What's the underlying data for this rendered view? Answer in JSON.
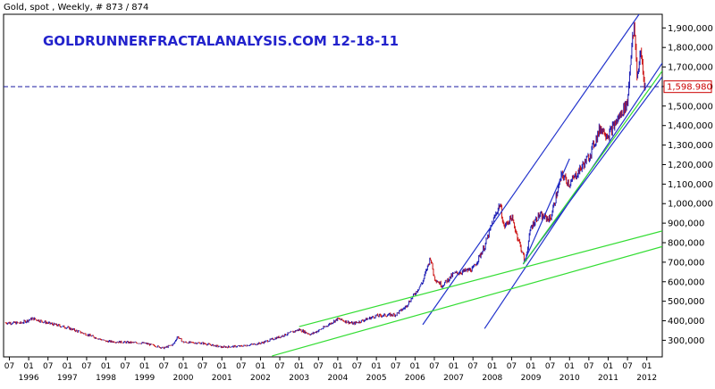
{
  "header": "Gold, spot , Weekly, # 873 / 874",
  "watermark": "GOLDRUNNERFRACTALANALYSIS.COM  12-18-11",
  "colors": {
    "background": "#ffffff",
    "frame": "#000000",
    "price_up": "#1a1ab3",
    "price_down": "#cc1111",
    "blue_channel": "#2233cc",
    "green_channel": "#33dd33",
    "dashed_line": "#1a1aa0",
    "watermark": "#2222cc",
    "last_price_box": "#cc0000"
  },
  "chart_data": {
    "type": "line",
    "title": "",
    "xlabel": "",
    "ylabel": "",
    "y_ticks": [
      "300,000",
      "400,000",
      "500,000",
      "600,000",
      "700,000",
      "800,000",
      "900,000",
      "1,000,000",
      "1,100,000",
      "1,200,000",
      "1,300,000",
      "1,400,000",
      "1,500,000",
      "1,600,000",
      "1,700,000",
      "1,800,000",
      "1,900,000"
    ],
    "y_tick_values": [
      300,
      400,
      500,
      600,
      700,
      800,
      900,
      1000,
      1100,
      1200,
      1300,
      1400,
      1500,
      1600,
      1700,
      1800,
      1900
    ],
    "ylim": [
      215,
      1970
    ],
    "xlim": [
      1995.35,
      2012.4
    ],
    "x_ticks_minor": [
      {
        "x": 1995.5,
        "label": "07"
      },
      {
        "x": 1996.0,
        "label": "01"
      },
      {
        "x": 1996.5,
        "label": "07"
      },
      {
        "x": 1997.0,
        "label": "01"
      },
      {
        "x": 1997.5,
        "label": "07"
      },
      {
        "x": 1998.0,
        "label": "01"
      },
      {
        "x": 1998.5,
        "label": "07"
      },
      {
        "x": 1999.0,
        "label": "01"
      },
      {
        "x": 1999.5,
        "label": "07"
      },
      {
        "x": 2000.0,
        "label": "01"
      },
      {
        "x": 2000.5,
        "label": "07"
      },
      {
        "x": 2001.0,
        "label": "01"
      },
      {
        "x": 2001.5,
        "label": "07"
      },
      {
        "x": 2002.0,
        "label": "01"
      },
      {
        "x": 2002.5,
        "label": "07"
      },
      {
        "x": 2003.0,
        "label": "01"
      },
      {
        "x": 2003.5,
        "label": "07"
      },
      {
        "x": 2004.0,
        "label": "01"
      },
      {
        "x": 2004.5,
        "label": "07"
      },
      {
        "x": 2005.0,
        "label": "01"
      },
      {
        "x": 2005.5,
        "label": "07"
      },
      {
        "x": 2006.0,
        "label": "01"
      },
      {
        "x": 2006.5,
        "label": "07"
      },
      {
        "x": 2007.0,
        "label": "01"
      },
      {
        "x": 2007.5,
        "label": "07"
      },
      {
        "x": 2008.0,
        "label": "01"
      },
      {
        "x": 2008.5,
        "label": "07"
      },
      {
        "x": 2009.0,
        "label": "01"
      },
      {
        "x": 2009.5,
        "label": "07"
      },
      {
        "x": 2010.0,
        "label": "01"
      },
      {
        "x": 2010.5,
        "label": "07"
      },
      {
        "x": 2011.0,
        "label": "01"
      },
      {
        "x": 2011.5,
        "label": "07"
      },
      {
        "x": 2012.0,
        "label": "01"
      }
    ],
    "x_ticks_major": [
      {
        "x": 1996.0,
        "label": "1996"
      },
      {
        "x": 1997.0,
        "label": "1997"
      },
      {
        "x": 1998.0,
        "label": "1998"
      },
      {
        "x": 1999.0,
        "label": "1999"
      },
      {
        "x": 2000.0,
        "label": "2000"
      },
      {
        "x": 2001.0,
        "label": "2001"
      },
      {
        "x": 2002.0,
        "label": "2002"
      },
      {
        "x": 2003.0,
        "label": "2003"
      },
      {
        "x": 2004.0,
        "label": "2004"
      },
      {
        "x": 2005.0,
        "label": "2005"
      },
      {
        "x": 2006.0,
        "label": "2006"
      },
      {
        "x": 2007.0,
        "label": "2007"
      },
      {
        "x": 2008.0,
        "label": "2008"
      },
      {
        "x": 2009.0,
        "label": "2009"
      },
      {
        "x": 2010.0,
        "label": "2010"
      },
      {
        "x": 2011.0,
        "label": "2011"
      },
      {
        "x": 2012.0,
        "label": "2012"
      }
    ],
    "price_series": {
      "name": "",
      "points": [
        [
          1995.4,
          390
        ],
        [
          1995.8,
          388
        ],
        [
          1996.1,
          412
        ],
        [
          1996.5,
          388
        ],
        [
          1997.0,
          365
        ],
        [
          1997.5,
          330
        ],
        [
          1998.0,
          295
        ],
        [
          1998.5,
          290
        ],
        [
          1999.0,
          285
        ],
        [
          1999.5,
          260
        ],
        [
          1999.75,
          280
        ],
        [
          1999.85,
          320
        ],
        [
          2000.0,
          290
        ],
        [
          2000.5,
          285
        ],
        [
          2001.0,
          265
        ],
        [
          2001.5,
          270
        ],
        [
          2002.0,
          285
        ],
        [
          2002.5,
          318
        ],
        [
          2003.0,
          355
        ],
        [
          2003.3,
          330
        ],
        [
          2003.6,
          360
        ],
        [
          2004.0,
          410
        ],
        [
          2004.4,
          385
        ],
        [
          2004.7,
          405
        ],
        [
          2005.0,
          425
        ],
        [
          2005.5,
          432
        ],
        [
          2005.75,
          470
        ],
        [
          2006.0,
          540
        ],
        [
          2006.2,
          600
        ],
        [
          2006.4,
          725
        ],
        [
          2006.5,
          620
        ],
        [
          2006.7,
          580
        ],
        [
          2007.0,
          640
        ],
        [
          2007.5,
          665
        ],
        [
          2007.8,
          780
        ],
        [
          2008.0,
          900
        ],
        [
          2008.2,
          1000
        ],
        [
          2008.3,
          880
        ],
        [
          2008.5,
          930
        ],
        [
          2008.7,
          800
        ],
        [
          2008.85,
          700
        ],
        [
          2009.0,
          880
        ],
        [
          2009.2,
          940
        ],
        [
          2009.5,
          920
        ],
        [
          2009.8,
          1150
        ],
        [
          2010.0,
          1100
        ],
        [
          2010.5,
          1240
        ],
        [
          2010.8,
          1390
        ],
        [
          2011.0,
          1350
        ],
        [
          2011.3,
          1450
        ],
        [
          2011.5,
          1520
        ],
        [
          2011.6,
          1800
        ],
        [
          2011.68,
          1900
        ],
        [
          2011.75,
          1650
        ],
        [
          2011.85,
          1780
        ],
        [
          2011.92,
          1640
        ],
        [
          2011.96,
          1600
        ]
      ]
    },
    "trend_lines": [
      {
        "color": "blue",
        "from": [
          2006.2,
          380
        ],
        "to": [
          2011.8,
          1970
        ]
      },
      {
        "color": "blue",
        "from": [
          2007.8,
          360
        ],
        "to": [
          2012.4,
          1720
        ]
      },
      {
        "color": "blue",
        "from": [
          2008.8,
          690
        ],
        "to": [
          2012.4,
          1650
        ]
      },
      {
        "color": "blue",
        "from": [
          2008.8,
          690
        ],
        "to": [
          2010.0,
          1230
        ]
      },
      {
        "color": "green",
        "from": [
          2003.0,
          370
        ],
        "to": [
          2012.4,
          860
        ]
      },
      {
        "color": "green",
        "from": [
          2002.3,
          220
        ],
        "to": [
          2012.4,
          780
        ]
      },
      {
        "color": "green",
        "from": [
          2008.8,
          690
        ],
        "to": [
          2012.4,
          1680
        ]
      }
    ],
    "reference_level": {
      "value": 1598.98,
      "label": "1,598.980"
    }
  }
}
